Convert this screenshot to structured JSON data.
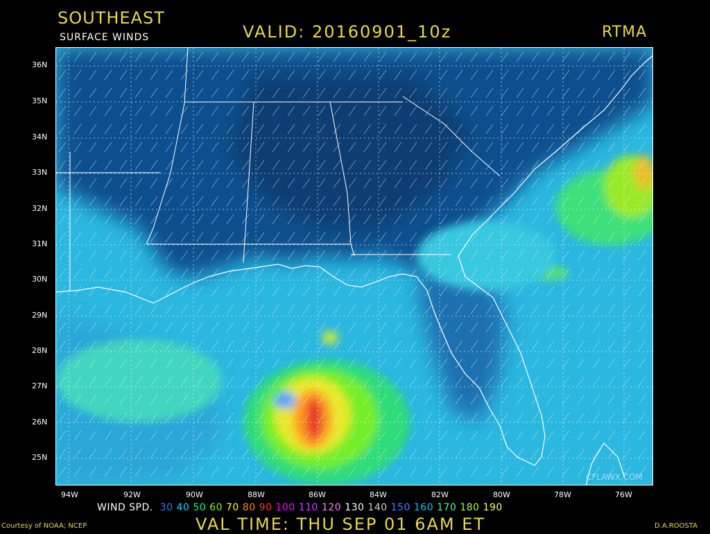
{
  "header": {
    "region": "SOUTHEAST",
    "product": "SURFACE WINDS",
    "valid": "VALID: 20160901_10z",
    "model": "RTMA"
  },
  "map": {
    "lat_labels": [
      "36N",
      "35N",
      "34N",
      "33N",
      "32N",
      "31N",
      "30N",
      "29N",
      "28N",
      "27N",
      "26N",
      "25N"
    ],
    "lon_labels": [
      "94W",
      "92W",
      "90W",
      "88W",
      "86W",
      "84W",
      "82W",
      "80W",
      "78W",
      "76W"
    ],
    "watermark": "CFLAWX.COM"
  },
  "legend": {
    "label": "WIND SPD.",
    "items": [
      {
        "value": "30",
        "color": "#3a78ff"
      },
      {
        "value": "40",
        "color": "#00d8ff"
      },
      {
        "value": "50",
        "color": "#00ff80"
      },
      {
        "value": "60",
        "color": "#7cff00"
      },
      {
        "value": "70",
        "color": "#ffff00"
      },
      {
        "value": "80",
        "color": "#ff8c00"
      },
      {
        "value": "90",
        "color": "#ff3030"
      },
      {
        "value": "100",
        "color": "#ff00ff"
      },
      {
        "value": "110",
        "color": "#d040ff"
      },
      {
        "value": "120",
        "color": "#ff80ff"
      },
      {
        "value": "130",
        "color": "#ffffff"
      },
      {
        "value": "140",
        "color": "#d0d0d0"
      },
      {
        "value": "150",
        "color": "#4080ff"
      },
      {
        "value": "160",
        "color": "#00c8ff"
      },
      {
        "value": "170",
        "color": "#40ffa0"
      },
      {
        "value": "180",
        "color": "#a0ff40"
      },
      {
        "value": "190",
        "color": "#ffff60"
      }
    ]
  },
  "footer": {
    "val_time": "VAL TIME: THU SEP 01   6AM ET",
    "courtesy": "Courtesy of NOAA; NCEP",
    "author": "D.A.ROOSTA"
  },
  "colors": {
    "title_yellow": "#e8d84a",
    "ocean_cyan": "#2ec6e8",
    "land_dark_blue": "#0a3f78"
  }
}
